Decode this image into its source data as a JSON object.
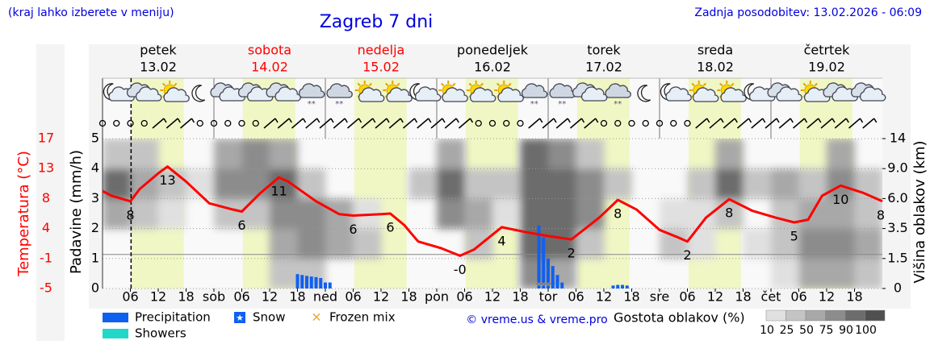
{
  "header": {
    "note": "(kraj lahko izberete v meniju)",
    "title": "Zagreb 7 dni",
    "updated": "Zadnja posodobitev: 13.02.2026 - 06:09"
  },
  "chart_data": {
    "type": "meteogram",
    "days": [
      {
        "name": "petek",
        "date": "13.02",
        "color": "#000000"
      },
      {
        "name": "sobota",
        "date": "14.02",
        "color": "#ff0000"
      },
      {
        "name": "nedelja",
        "date": "15.02",
        "color": "#ff0000"
      },
      {
        "name": "ponedeljek",
        "date": "16.02",
        "color": "#000000"
      },
      {
        "name": "torek",
        "date": "17.02",
        "color": "#000000"
      },
      {
        "name": "sreda",
        "date": "18.02",
        "color": "#000000"
      },
      {
        "name": "četrtek",
        "date": "19.02",
        "color": "#000000"
      }
    ],
    "xlim": [
      0,
      168
    ],
    "xticks": [
      {
        "value": 6,
        "label": "06"
      },
      {
        "value": 12,
        "label": "12"
      },
      {
        "value": 18,
        "label": "18"
      },
      {
        "value": 24,
        "label": "sob"
      },
      {
        "value": 30,
        "label": "06"
      },
      {
        "value": 36,
        "label": "12"
      },
      {
        "value": 42,
        "label": "18"
      },
      {
        "value": 48,
        "label": "ned"
      },
      {
        "value": 54,
        "label": "06"
      },
      {
        "value": 60,
        "label": "12"
      },
      {
        "value": 66,
        "label": "18"
      },
      {
        "value": 72,
        "label": "pon"
      },
      {
        "value": 78,
        "label": "06"
      },
      {
        "value": 84,
        "label": "12"
      },
      {
        "value": 90,
        "label": "18"
      },
      {
        "value": 96,
        "label": "tor"
      },
      {
        "value": 102,
        "label": "06"
      },
      {
        "value": 108,
        "label": "12"
      },
      {
        "value": 114,
        "label": "18"
      },
      {
        "value": 120,
        "label": "sre"
      },
      {
        "value": 126,
        "label": "06"
      },
      {
        "value": 132,
        "label": "12"
      },
      {
        "value": 138,
        "label": "18"
      },
      {
        "value": 144,
        "label": "čet"
      },
      {
        "value": 150,
        "label": "06"
      },
      {
        "value": 156,
        "label": "12"
      },
      {
        "value": 162,
        "label": "18"
      }
    ],
    "ylabel": "Padavine (mm/h)",
    "ylim": [
      0,
      5
    ],
    "yticks": [
      0,
      1,
      2,
      3,
      4,
      5
    ],
    "y2label": "Višina oblakov (km)",
    "y2lim": [
      0,
      14
    ],
    "y2ticks": [
      0,
      1.5,
      3.5,
      {
        "value": 6,
        "label": "6.0"
      },
      {
        "value": 9,
        "label": "9.0"
      },
      14
    ],
    "temperature": {
      "label": "Temperatura (°C)",
      "color": "#ff0000",
      "ylim": [
        -5,
        17
      ],
      "yticks": [
        -5,
        {
          "value": -0.6,
          "label": "-1"
        },
        {
          "value": 3.8,
          "label": "4"
        },
        {
          "value": 8.2,
          "label": "8"
        },
        {
          "value": 12.6,
          "label": "13"
        },
        17
      ],
      "x": [
        0,
        2,
        6,
        8,
        12,
        14,
        18,
        23,
        28,
        30,
        34,
        38,
        40,
        46,
        51,
        54,
        60,
        62,
        65,
        68,
        73,
        77,
        80,
        86,
        91,
        96,
        101,
        107,
        111,
        115,
        120,
        124,
        126,
        130,
        135,
        140,
        145,
        149,
        152,
        155,
        159,
        164,
        168
      ],
      "values": [
        9.3,
        8.6,
        7.8,
        9.6,
        11.9,
        12.9,
        10.7,
        7.5,
        6.6,
        6.3,
        9.0,
        11.3,
        10.7,
        7.8,
        5.9,
        5.7,
        5.9,
        6.0,
        4.3,
        1.9,
        0.9,
        -0.2,
        0.7,
        4.0,
        3.3,
        2.7,
        2.2,
        5.4,
        8.0,
        6.6,
        3.6,
        2.5,
        1.9,
        5.4,
        8.1,
        6.4,
        5.4,
        4.7,
        5.1,
        8.6,
        10.1,
        9.0,
        7.8
      ],
      "extremes": {
        "x": [
          6,
          14,
          30,
          38,
          54,
          62,
          77,
          86,
          101,
          111,
          126,
          135,
          149,
          159,
          168
        ],
        "values": [
          7.8,
          12.9,
          6.3,
          11.3,
          5.7,
          6.0,
          -0.2,
          4.0,
          2.2,
          8.0,
          1.9,
          8.1,
          4.7,
          10.1,
          7.8
        ],
        "value_labels": [
          "8",
          "13",
          "6",
          "11",
          "6",
          "6",
          "-0",
          "4",
          "2",
          "8",
          "2",
          "8",
          "5",
          "10",
          "8"
        ]
      }
    },
    "series": [
      {
        "name": "Precipitation",
        "color": "#1060f0",
        "x": [
          42,
          43,
          44,
          45,
          46,
          47,
          48,
          49,
          94,
          95,
          96,
          97,
          98,
          99,
          110,
          111,
          112,
          113
        ],
        "values": [
          0.48,
          0.45,
          0.42,
          0.4,
          0.38,
          0.35,
          0.2,
          0.2,
          2.1,
          1.7,
          1.0,
          0.75,
          0.45,
          0.2,
          0.1,
          0.12,
          0.12,
          0.1
        ]
      },
      {
        "name": "Snow",
        "color": "#1060f0",
        "x": [
          94,
          95,
          96,
          97
        ]
      },
      {
        "name": "Frozen mix",
        "color": "#f0a020",
        "x": [
          94,
          95,
          96
        ]
      },
      {
        "name": "Showers",
        "color": "#20d8c8",
        "x": [],
        "values": []
      }
    ],
    "cloud_cover": {
      "label": "Gostota oblakov (%)",
      "scale": [
        10,
        25,
        50,
        75,
        90,
        100
      ],
      "colors": [
        "#e0e0e0",
        "#c4c4c4",
        "#a8a8a8",
        "#8c8c8c",
        "#6c6c6c",
        "#505050"
      ],
      "x": [
        0,
        6,
        12,
        18,
        24,
        30,
        36,
        42,
        48,
        54,
        60,
        66,
        72,
        78,
        84,
        90,
        96,
        102,
        108,
        114,
        120,
        126,
        132,
        138,
        144,
        150,
        156,
        162
      ],
      "values": [
        [
          0,
          0,
          50,
          90,
          40
        ],
        [
          0,
          0,
          25,
          50,
          25
        ],
        [
          0,
          0,
          10,
          25,
          0
        ],
        [
          0,
          0,
          0,
          10,
          0
        ],
        [
          0,
          0,
          25,
          75,
          60
        ],
        [
          0,
          0,
          25,
          75,
          75
        ],
        [
          25,
          50,
          75,
          90,
          50
        ],
        [
          25,
          75,
          75,
          25,
          0
        ],
        [
          0,
          50,
          50,
          0,
          0
        ],
        [
          0,
          25,
          10,
          0,
          0
        ],
        [
          0,
          0,
          0,
          0,
          0
        ],
        [
          0,
          0,
          0,
          25,
          0
        ],
        [
          0,
          0,
          75,
          90,
          50
        ],
        [
          0,
          25,
          50,
          25,
          0
        ],
        [
          0,
          0,
          10,
          25,
          0
        ],
        [
          75,
          90,
          90,
          90,
          90
        ],
        [
          50,
          90,
          90,
          90,
          75
        ],
        [
          0,
          25,
          75,
          75,
          25
        ],
        [
          0,
          0,
          0,
          25,
          0
        ],
        [
          0,
          0,
          0,
          0,
          0
        ],
        [
          0,
          25,
          10,
          0,
          0
        ],
        [
          0,
          10,
          10,
          25,
          0
        ],
        [
          0,
          0,
          25,
          90,
          50
        ],
        [
          0,
          10,
          0,
          25,
          0
        ],
        [
          10,
          25,
          25,
          50,
          0
        ],
        [
          50,
          75,
          50,
          25,
          0
        ],
        [
          50,
          75,
          50,
          75,
          50
        ],
        [
          25,
          50,
          25,
          25,
          0
        ]
      ]
    },
    "credit": "© vreme.us & vreme.pro"
  }
}
